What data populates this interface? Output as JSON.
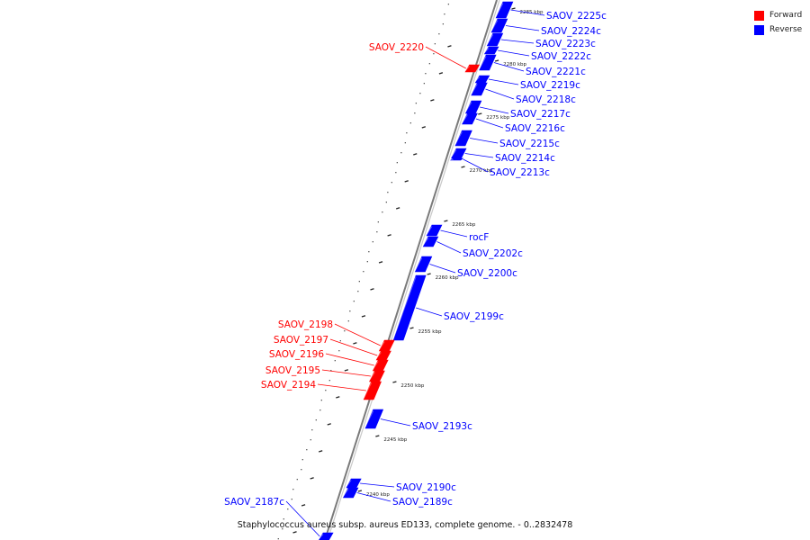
{
  "caption": "Staphylococcus aureus subsp. aureus ED133, complete genome. - 0..2832478",
  "legend": [
    {
      "label": "Forward",
      "color": "#ff0000"
    },
    {
      "label": "Reverse",
      "color": "#0000ff"
    }
  ],
  "colors": {
    "forward": "#ff0000",
    "reverse": "#0000ff",
    "backbone": "#7a7a7a"
  },
  "tick_labels": [
    "2285 kbp",
    "2280 kbp",
    "2275 kbp",
    "2270 kbp",
    "2265 kbp",
    "2260 kbp",
    "2255 kbp",
    "2250 kbp",
    "2245 kbp",
    "2240 kbp"
  ],
  "genes": [
    {
      "name": "SAOV_2225c",
      "strand": "reverse"
    },
    {
      "name": "SAOV_2224c",
      "strand": "reverse"
    },
    {
      "name": "SAOV_2223c",
      "strand": "reverse"
    },
    {
      "name": "SAOV_2222c",
      "strand": "reverse"
    },
    {
      "name": "SAOV_2221c",
      "strand": "reverse"
    },
    {
      "name": "SAOV_2220",
      "strand": "forward"
    },
    {
      "name": "SAOV_2219c",
      "strand": "reverse"
    },
    {
      "name": "SAOV_2218c",
      "strand": "reverse"
    },
    {
      "name": "SAOV_2217c",
      "strand": "reverse"
    },
    {
      "name": "SAOV_2216c",
      "strand": "reverse"
    },
    {
      "name": "SAOV_2215c",
      "strand": "reverse"
    },
    {
      "name": "SAOV_2214c",
      "strand": "reverse"
    },
    {
      "name": "SAOV_2213c",
      "strand": "reverse"
    },
    {
      "name": "rocF",
      "strand": "reverse"
    },
    {
      "name": "SAOV_2202c",
      "strand": "reverse"
    },
    {
      "name": "SAOV_2200c",
      "strand": "reverse"
    },
    {
      "name": "SAOV_2199c",
      "strand": "reverse"
    },
    {
      "name": "SAOV_2198",
      "strand": "forward"
    },
    {
      "name": "SAOV_2197",
      "strand": "forward"
    },
    {
      "name": "SAOV_2196",
      "strand": "forward"
    },
    {
      "name": "SAOV_2195",
      "strand": "forward"
    },
    {
      "name": "SAOV_2194",
      "strand": "forward"
    },
    {
      "name": "SAOV_2193c",
      "strand": "reverse"
    },
    {
      "name": "SAOV_2190c",
      "strand": "reverse"
    },
    {
      "name": "SAOV_2189c",
      "strand": "reverse"
    },
    {
      "name": "SAOV_2187c",
      "strand": "reverse"
    }
  ]
}
